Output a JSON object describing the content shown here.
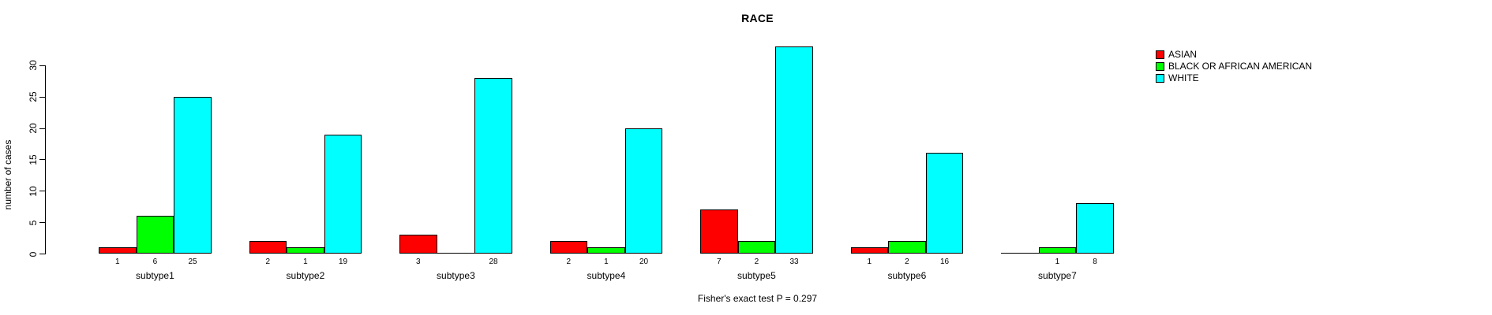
{
  "chart_data": {
    "type": "bar",
    "title": "RACE",
    "ylabel": "number of cases",
    "xlabel": "",
    "footer": "Fisher's exact test P = 0.297",
    "categories": [
      "subtype1",
      "subtype2",
      "subtype3",
      "subtype4",
      "subtype5",
      "subtype6",
      "subtype7"
    ],
    "series": [
      {
        "name": "ASIAN",
        "color": "#FF0000",
        "values": [
          1,
          2,
          3,
          2,
          7,
          1,
          0
        ]
      },
      {
        "name": "BLACK OR AFRICAN AMERICAN",
        "color": "#00FF00",
        "values": [
          6,
          1,
          0,
          1,
          2,
          2,
          1
        ]
      },
      {
        "name": "WHITE",
        "color": "#00FFFF",
        "values": [
          25,
          19,
          28,
          20,
          33,
          16,
          8
        ]
      }
    ],
    "bar_labels": [
      [
        "1",
        "6",
        "25"
      ],
      [
        "2",
        "1",
        "19"
      ],
      [
        "3",
        "",
        "28"
      ],
      [
        "2",
        "1",
        "20"
      ],
      [
        "7",
        "2",
        "33"
      ],
      [
        "1",
        "2",
        "16"
      ],
      [
        "",
        "1",
        "8"
      ]
    ],
    "yticks": [
      0,
      5,
      10,
      15,
      20,
      25,
      30
    ],
    "ylim": [
      0,
      33
    ],
    "grid": false,
    "legend_position": "top-right",
    "bar_border_color": "#000000",
    "background_color": "#FFFFFF"
  }
}
